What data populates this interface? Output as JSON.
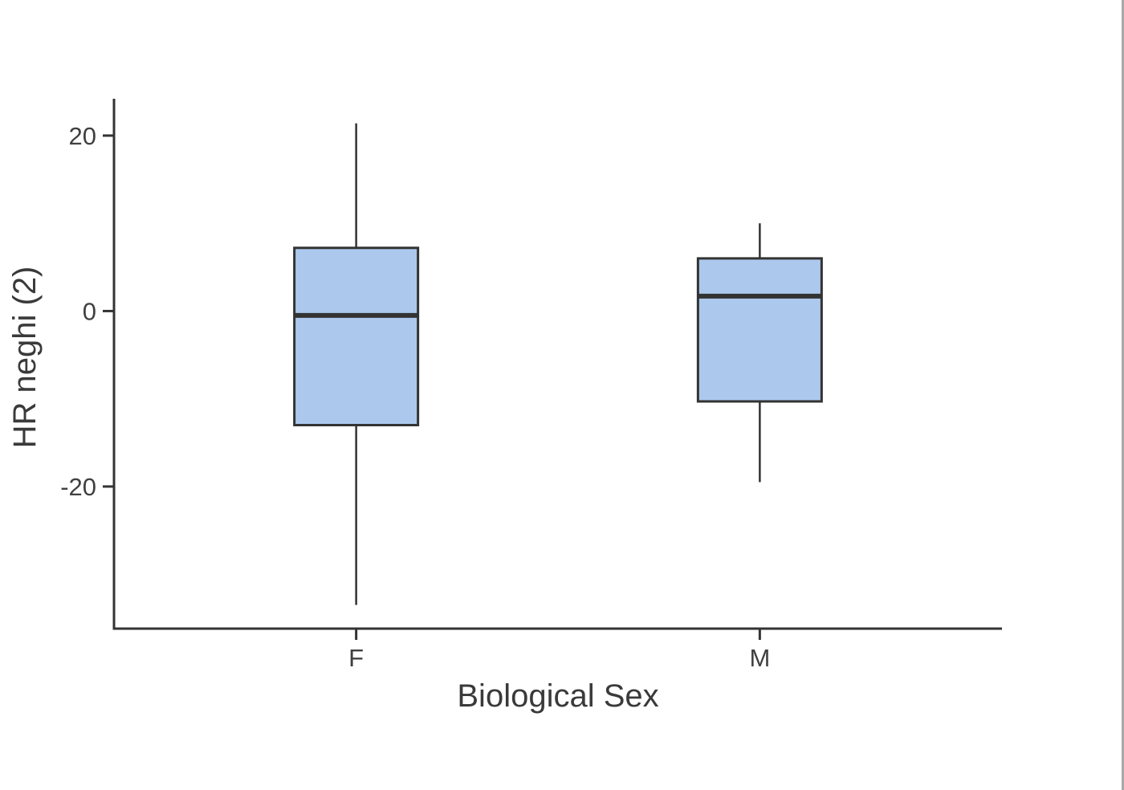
{
  "chart_data": {
    "type": "boxplot",
    "title": "",
    "xlabel": "Biological Sex",
    "ylabel": "HR neghi (2)",
    "categories": [
      "F",
      "M"
    ],
    "series": [
      {
        "name": "F",
        "whisker_low": -33.5,
        "q1": -13.0,
        "median": -0.5,
        "q3": 7.2,
        "whisker_high": 21.4
      },
      {
        "name": "M",
        "whisker_low": -19.5,
        "q1": -10.3,
        "median": 1.7,
        "q3": 6.0,
        "whisker_high": 10.0
      }
    ],
    "ylim": [
      -36.2,
      24.2
    ],
    "yticks": [
      20,
      0,
      -20
    ],
    "grid": false,
    "legend": false,
    "box_fill": "#acc9ed",
    "box_stroke": "#333333",
    "median_color": "#333333",
    "axis_color": "#333333",
    "tick_text_color": "#404040",
    "title_text_color": "#3a3a3a"
  },
  "page": {
    "right_edge_line_color": "#a8a8a8"
  }
}
